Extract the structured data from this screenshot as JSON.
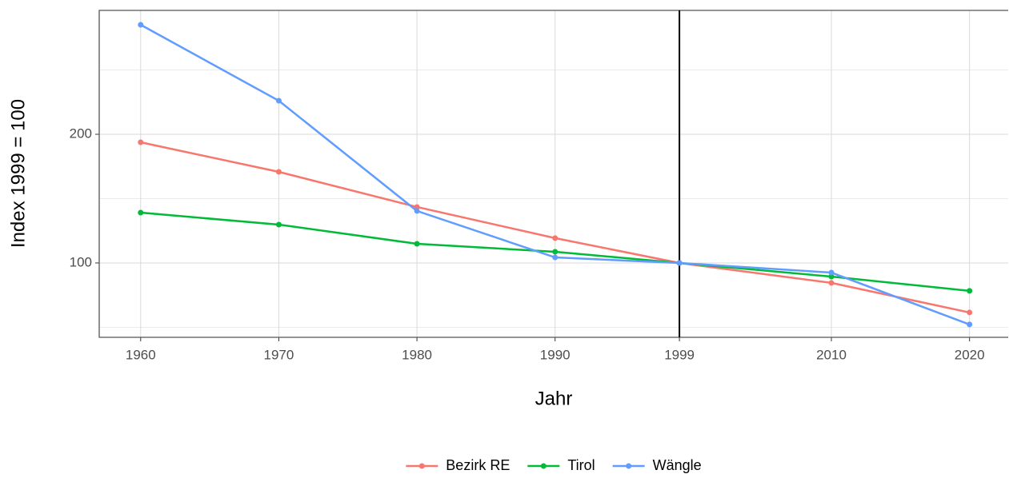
{
  "chart_data": {
    "type": "line",
    "x_label": "Jahr",
    "y_label": "Index 1999 = 100",
    "x": [
      1960,
      1970,
      1980,
      1990,
      1999,
      2010,
      2020
    ],
    "series": [
      {
        "name": "Bezirk RE",
        "color": "#F8766D",
        "values": [
          193.8,
          170.8,
          143.5,
          119.3,
          100,
          84.5,
          61.5
        ]
      },
      {
        "name": "Tirol",
        "color": "#00BA38",
        "values": [
          139.1,
          129.8,
          114.9,
          108.7,
          100,
          89.4,
          78.3
        ]
      },
      {
        "name": "Wängle",
        "color": "#619CFF",
        "values": [
          285.1,
          226.1,
          140.4,
          104.3,
          100,
          92.5,
          52.2
        ]
      }
    ],
    "xlim": [
      1957,
      2022.8
    ],
    "xticks": [
      1960,
      1970,
      1980,
      1990,
      1999,
      2010,
      2020
    ],
    "ylim": [
      42.2,
      296.3
    ],
    "yticks": [
      100,
      200
    ],
    "yminor": [
      50,
      150,
      250
    ],
    "vline": 1999,
    "grid": true,
    "legend": "bottom"
  }
}
